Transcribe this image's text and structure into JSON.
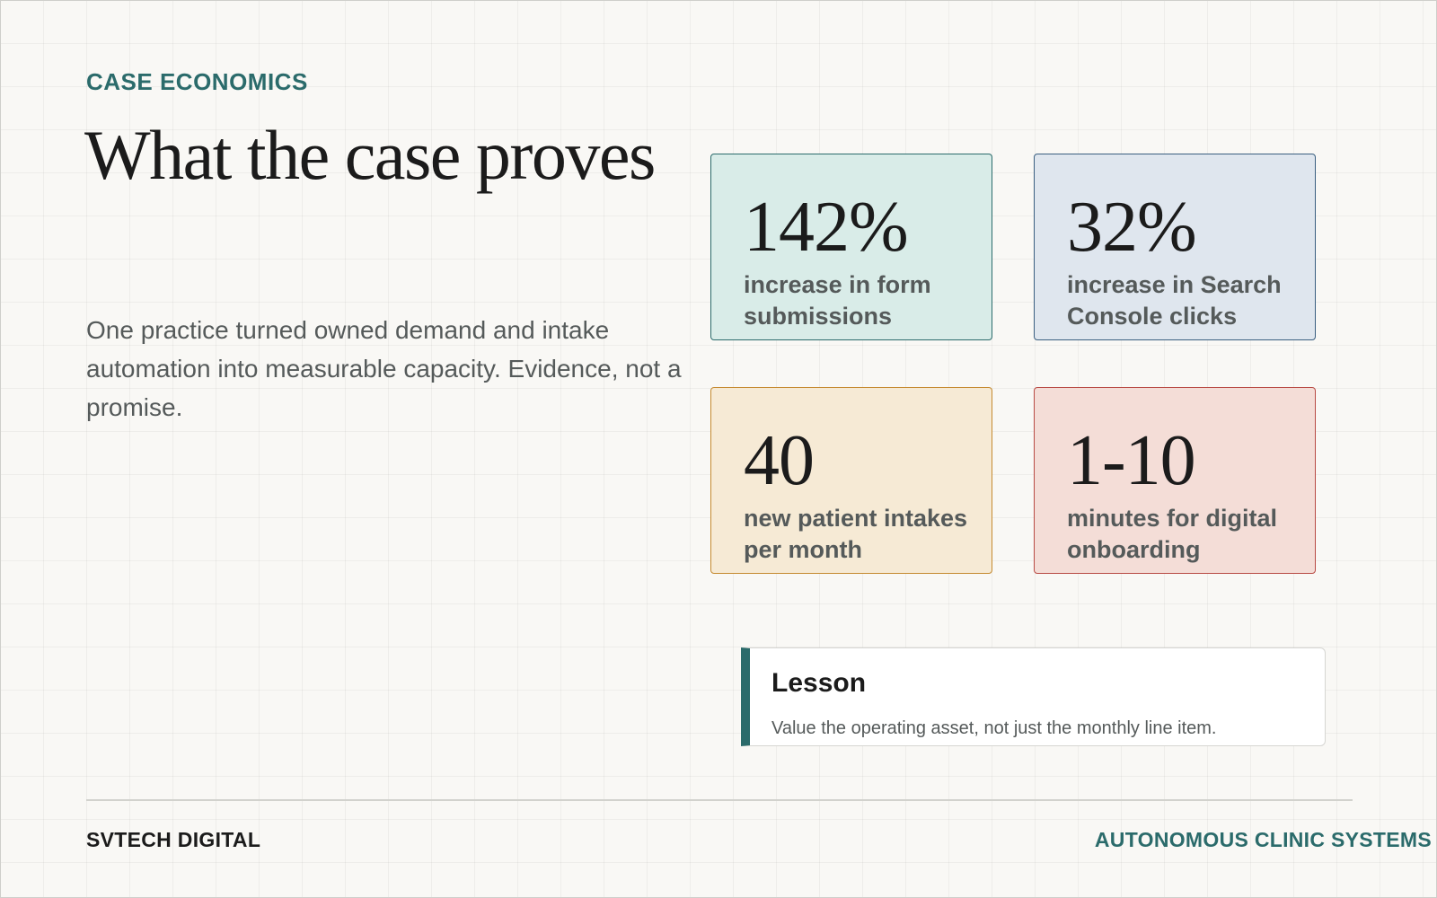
{
  "header": {
    "eyebrow": "CASE ECONOMICS",
    "title": "What the case proves"
  },
  "intro": {
    "text": "One practice turned owned demand and intake automation into measurable capacity. Evidence, not a promise."
  },
  "stats": [
    {
      "value": "142%",
      "label": "increase in form submissions",
      "color": "#d9ece8"
    },
    {
      "value": "32%",
      "label": "increase in Search Console clicks",
      "color": "#dfe6ee"
    },
    {
      "value": "40",
      "label": "new patient intakes per month",
      "color": "#f6ead5"
    },
    {
      "value": "1-10",
      "label": "minutes for digital onboarding",
      "color": "#f4ddd7"
    }
  ],
  "lesson": {
    "title": "Lesson",
    "body": "Value the operating asset, not just the monthly line item."
  },
  "footer": {
    "brand": "SVTECH DIGITAL",
    "tagline": "AUTONOMOUS CLINIC SYSTEMS"
  },
  "theme": {
    "accent": "#2b6b6b",
    "background": "#f9f8f5"
  }
}
